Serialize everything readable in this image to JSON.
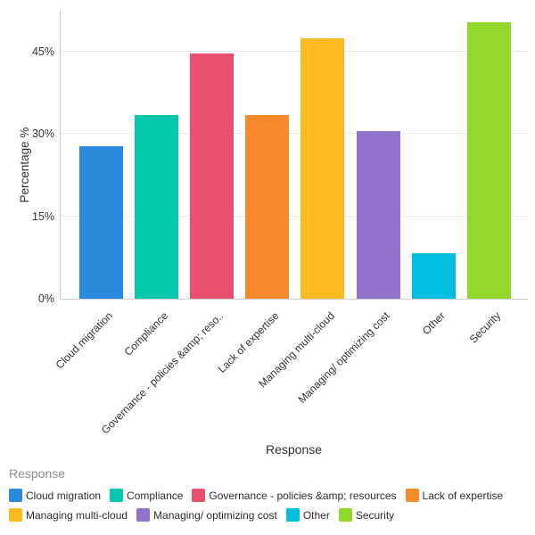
{
  "chart_data": {
    "type": "bar",
    "title": "",
    "xlabel": "Response",
    "ylabel": "Percentage %",
    "ylim": [
      0,
      52.6
    ],
    "yticks": [
      0,
      15,
      30,
      45
    ],
    "ytick_labels": [
      "0%",
      "15%",
      "30%",
      "45%"
    ],
    "categories": [
      "Cloud migration",
      "Compliance",
      "Governance - policies &amp; reso..",
      "Lack of expertise",
      "Managing multi-cloud",
      "Managing/ optimizing cost",
      "Other",
      "Security"
    ],
    "values": [
      27.8,
      33.4,
      44.6,
      33.4,
      47.4,
      30.6,
      8.3,
      50.3
    ],
    "colors": [
      "#2b8ade",
      "#03c8ac",
      "#e9506f",
      "#f78a2b",
      "#fdbb21",
      "#9173ce",
      "#00bfde",
      "#90d92b"
    ],
    "grid": "horizontal",
    "legend_position": "bottom"
  },
  "legend": {
    "title": "Response",
    "items": [
      {
        "label": "Cloud migration",
        "color": "#2b8ade"
      },
      {
        "label": "Compliance",
        "color": "#03c8ac"
      },
      {
        "label": "Governance - policies &amp; resources",
        "color": "#e9506f"
      },
      {
        "label": "Lack of expertise",
        "color": "#f78a2b"
      },
      {
        "label": "Managing multi-cloud",
        "color": "#fdbb21"
      },
      {
        "label": "Managing/ optimizing cost",
        "color": "#9173ce"
      },
      {
        "label": "Other",
        "color": "#00bfde"
      },
      {
        "label": "Security",
        "color": "#90d92b"
      }
    ]
  },
  "axes": {
    "x_title": "Response",
    "y_title": "Percentage %"
  },
  "colors_meta": {
    "background": "#ffffff",
    "axis_line": "#cccccc",
    "gridline": "#ececec",
    "tick_text": "#333333",
    "legend_title_text": "#8e8e8e"
  }
}
